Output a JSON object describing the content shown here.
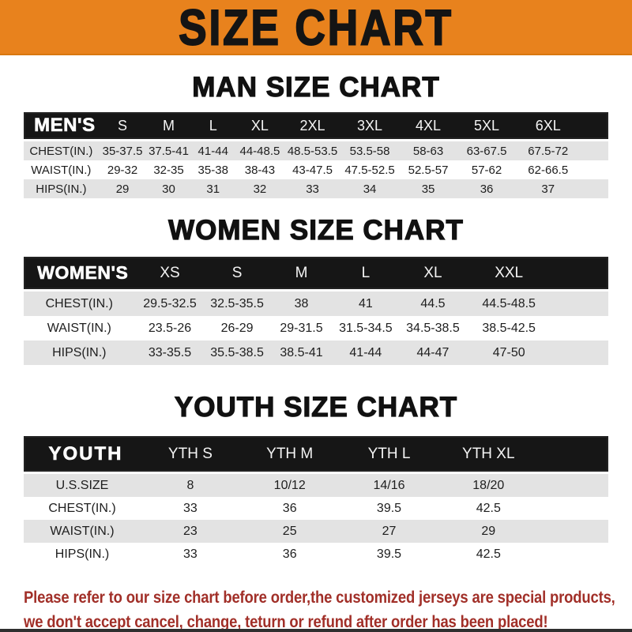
{
  "banner": {
    "title": "SIZE CHART"
  },
  "sections": [
    {
      "heading": "MAN SIZE CHART",
      "table": {
        "label": "MEN'S",
        "columns": [
          "S",
          "M",
          "L",
          "XL",
          "2XL",
          "3XL",
          "4XL",
          "5XL",
          "6XL"
        ],
        "rows": [
          {
            "label": "CHEST(IN.)",
            "values": [
              "35-37.5",
              "37.5-41",
              "41-44",
              "44-48.5",
              "48.5-53.5",
              "53.5-58",
              "58-63",
              "63-67.5",
              "67.5-72"
            ]
          },
          {
            "label": "WAIST(IN.)",
            "values": [
              "29-32",
              "32-35",
              "35-38",
              "38-43",
              "43-47.5",
              "47.5-52.5",
              "52.5-57",
              "57-62",
              "62-66.5"
            ]
          },
          {
            "label": "HIPS(IN.)",
            "values": [
              "29",
              "30",
              "31",
              "32",
              "33",
              "34",
              "35",
              "36",
              "37"
            ]
          }
        ]
      }
    },
    {
      "heading": "WOMEN SIZE CHART",
      "table": {
        "label": "WOMEN'S",
        "columns": [
          "XS",
          "S",
          "M",
          "L",
          "XL",
          "XXL"
        ],
        "rows": [
          {
            "label": "CHEST(IN.)",
            "values": [
              "29.5-32.5",
              "32.5-35.5",
              "38",
              "41",
              "44.5",
              "44.5-48.5"
            ]
          },
          {
            "label": "WAIST(IN.)",
            "values": [
              "23.5-26",
              "26-29",
              "29-31.5",
              "31.5-34.5",
              "34.5-38.5",
              "38.5-42.5"
            ]
          },
          {
            "label": "HIPS(IN.)",
            "values": [
              "33-35.5",
              "35.5-38.5",
              "38.5-41",
              "41-44",
              "44-47",
              "47-50"
            ]
          }
        ]
      }
    },
    {
      "heading": "YOUTH SIZE CHART",
      "table": {
        "label": "YOUTH",
        "columns": [
          "YTH S",
          "YTH M",
          "YTH L",
          "YTH XL"
        ],
        "rows": [
          {
            "label": "U.S.SIZE",
            "values": [
              "8",
              "10/12",
              "14/16",
              "18/20"
            ]
          },
          {
            "label": "CHEST(IN.)",
            "values": [
              "33",
              "36",
              "39.5",
              "42.5"
            ]
          },
          {
            "label": "WAIST(IN.)",
            "values": [
              "23",
              "25",
              "27",
              "29"
            ]
          },
          {
            "label": "HIPS(IN.)",
            "values": [
              "33",
              "36",
              "39.5",
              "42.5"
            ]
          }
        ]
      }
    }
  ],
  "footer": {
    "line1": "Please refer to our size chart before order,the customized jerseys are special products,",
    "line2": "we don't accept cancel, change, teturn or refund after order has been placed!"
  },
  "colors": {
    "banner_orange": "#E8821D",
    "header_black": "#161616",
    "row_stripe": "#E3E3E3",
    "note_red": "#A12F28",
    "bottom_bar": "#2F2F2F"
  }
}
